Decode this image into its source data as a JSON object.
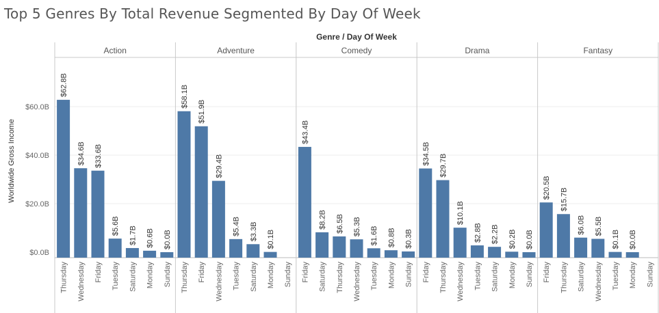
{
  "title": "Top 5 Genres By Total Revenue Segmented By Day Of Week",
  "chart_data": {
    "type": "bar",
    "title": "Top 5 Genres By Total Revenue Segmented By Day Of Week",
    "header": "Genre  /  Day Of Week",
    "ylabel": "Worldwide Gross Income",
    "ylim": [
      0,
      68
    ],
    "y_ticks": [
      0,
      20,
      40,
      60
    ],
    "y_tick_labels": [
      "$0.0B",
      "$20.0B",
      "$40.0B",
      "$60.0B"
    ],
    "grid": true,
    "bar_color": "#4e79a7",
    "panels": [
      {
        "name": "Action",
        "categories": [
          "Thursday",
          "Wednesday",
          "Friday",
          "Tuesday",
          "Saturday",
          "Monday",
          "Sunday"
        ],
        "values": [
          62.8,
          34.6,
          33.6,
          5.6,
          1.7,
          0.6,
          0.0
        ],
        "labels": [
          "$62.8B",
          "$34.6B",
          "$33.6B",
          "$5.6B",
          "$1.7B",
          "$0.6B",
          "$0.0B"
        ]
      },
      {
        "name": "Adventure",
        "categories": [
          "Thursday",
          "Friday",
          "Wednesday",
          "Tuesday",
          "Saturday",
          "Monday",
          "Sunday"
        ],
        "values": [
          58.1,
          51.9,
          29.4,
          5.4,
          3.3,
          0.1,
          null
        ],
        "labels": [
          "$58.1B",
          "$51.9B",
          "$29.4B",
          "$5.4B",
          "$3.3B",
          "$0.1B",
          ""
        ]
      },
      {
        "name": "Comedy",
        "categories": [
          "Friday",
          "Saturday",
          "Thursday",
          "Wednesday",
          "Tuesday",
          "Monday",
          "Sunday"
        ],
        "values": [
          43.4,
          8.2,
          6.5,
          5.3,
          1.6,
          0.8,
          0.3
        ],
        "labels": [
          "$43.4B",
          "$8.2B",
          "$6.5B",
          "$5.3B",
          "$1.6B",
          "$0.8B",
          "$0.3B"
        ]
      },
      {
        "name": "Drama",
        "categories": [
          "Friday",
          "Thursday",
          "Wednesday",
          "Tuesday",
          "Saturday",
          "Monday",
          "Sunday"
        ],
        "values": [
          34.5,
          29.7,
          10.1,
          2.8,
          2.2,
          0.2,
          0.0
        ],
        "labels": [
          "$34.5B",
          "$29.7B",
          "$10.1B",
          "$2.8B",
          "$2.2B",
          "$0.2B",
          "$0.0B"
        ]
      },
      {
        "name": "Fantasy",
        "categories": [
          "Friday",
          "Thursday",
          "Saturday",
          "Wednesday",
          "Tuesday",
          "Monday",
          "Sunday"
        ],
        "values": [
          20.5,
          15.7,
          6.0,
          5.5,
          0.1,
          0.0,
          null
        ],
        "labels": [
          "$20.5B",
          "$15.7B",
          "$6.0B",
          "$5.5B",
          "$0.1B",
          "$0.0B",
          ""
        ]
      }
    ]
  }
}
